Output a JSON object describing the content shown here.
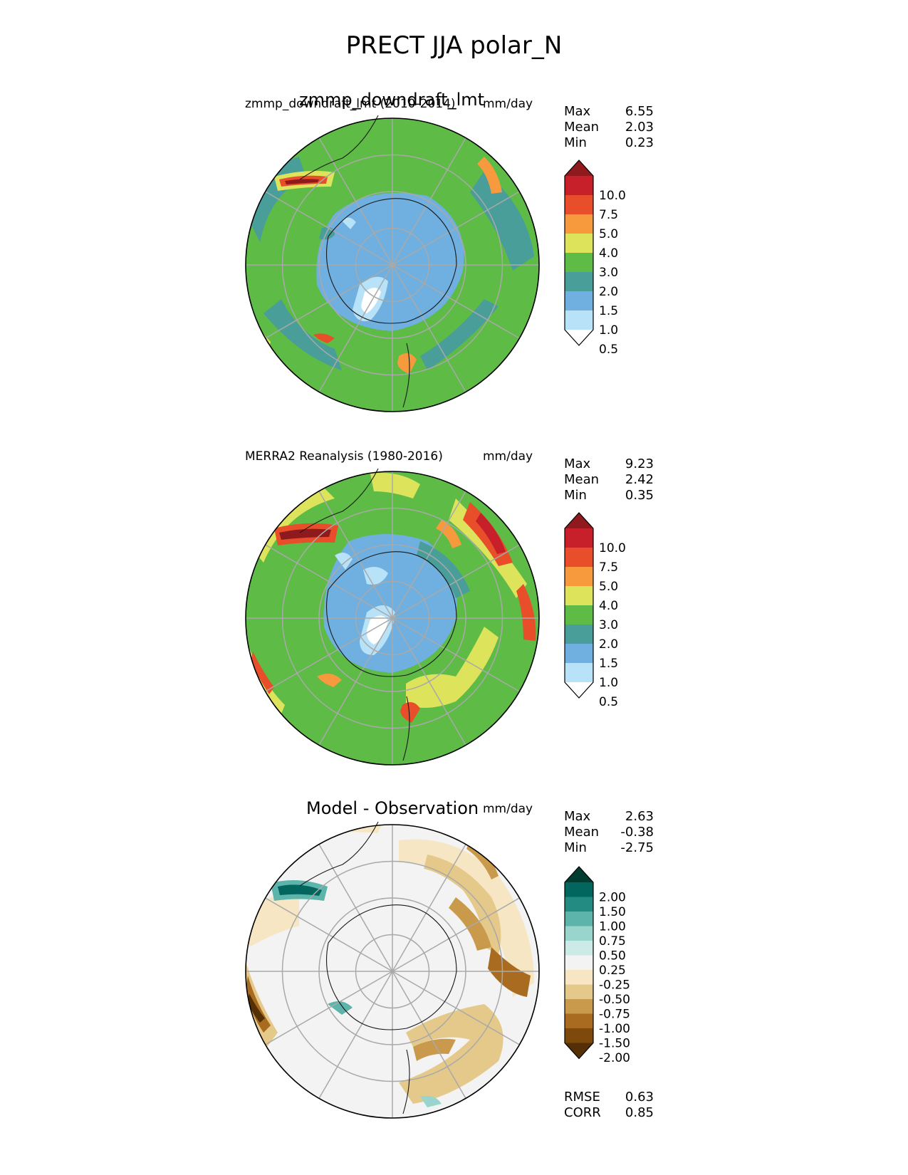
{
  "figure_title": "PRECT JJA polar_N",
  "panels": [
    {
      "title": "zmmp_downdraft_lmt",
      "subtitle_left": "zmmp_downdraft_lmt (2010-2014)",
      "units": "mm/day",
      "stats": {
        "max_label": "Max",
        "max": "6.55",
        "mean_label": "Mean",
        "mean": "2.03",
        "min_label": "Min",
        "min": "0.23"
      },
      "colorbar": {
        "labels": [
          "10.0",
          "7.5",
          "5.0",
          "4.0",
          "3.0",
          "2.0",
          "1.5",
          "1.0",
          "0.5"
        ],
        "colors": [
          "#8e1a1e",
          "#c8202a",
          "#e94e2b",
          "#f69a3d",
          "#dde35a",
          "#5dbb46",
          "#4a9e9a",
          "#6fb0e0",
          "#b8e2f8",
          "#ffffff"
        ]
      }
    },
    {
      "title": "",
      "subtitle_left": "MERRA2 Reanalysis (1980-2016)",
      "units": "mm/day",
      "stats": {
        "max_label": "Max",
        "max": "9.23",
        "mean_label": "Mean",
        "mean": "2.42",
        "min_label": "Min",
        "min": "0.35"
      },
      "colorbar": {
        "labels": [
          "10.0",
          "7.5",
          "5.0",
          "4.0",
          "3.0",
          "2.0",
          "1.5",
          "1.0",
          "0.5"
        ],
        "colors": [
          "#8e1a1e",
          "#c8202a",
          "#e94e2b",
          "#f69a3d",
          "#dde35a",
          "#5dbb46",
          "#4a9e9a",
          "#6fb0e0",
          "#b8e2f8",
          "#ffffff"
        ]
      }
    },
    {
      "title": "Model - Observation",
      "subtitle_left": "",
      "units": "mm/day",
      "stats": {
        "max_label": "Max",
        "max": "2.63",
        "mean_label": "Mean",
        "mean": "-0.38",
        "min_label": "Min",
        "min": "-2.75"
      },
      "colorbar": {
        "labels": [
          "2.00",
          "1.50",
          "1.00",
          "0.75",
          "0.50",
          "0.25",
          "-0.25",
          "-0.50",
          "-0.75",
          "-1.00",
          "-1.50",
          "-2.00"
        ],
        "colors": [
          "#013c30",
          "#02665e",
          "#238b82",
          "#5cb4aa",
          "#99d5cc",
          "#cdebe6",
          "#f3f3f3",
          "#f6e6c3",
          "#e5c98a",
          "#c99a4c",
          "#a86b1f",
          "#7d4a0c",
          "#553007"
        ]
      },
      "metrics": {
        "rmse_label": "RMSE",
        "rmse": "0.63",
        "corr_label": "CORR",
        "corr": "0.85"
      }
    }
  ],
  "chart_data": {
    "type": "heatmap",
    "title": "PRECT JJA polar_N",
    "projection": "north polar stereographic",
    "variable": "PRECT",
    "season": "JJA",
    "units": "mm/day",
    "panels": [
      {
        "name": "zmmp_downdraft_lmt (2010-2014)",
        "max": 6.55,
        "mean": 2.03,
        "min": 0.23,
        "levels": [
          0.5,
          1.0,
          1.5,
          2.0,
          3.0,
          4.0,
          5.0,
          7.5,
          10.0
        ]
      },
      {
        "name": "MERRA2 Reanalysis (1980-2016)",
        "max": 9.23,
        "mean": 2.42,
        "min": 0.35,
        "levels": [
          0.5,
          1.0,
          1.5,
          2.0,
          3.0,
          4.0,
          5.0,
          7.5,
          10.0
        ]
      },
      {
        "name": "Model - Observation",
        "max": 2.63,
        "mean": -0.38,
        "min": -2.75,
        "levels": [
          -2.0,
          -1.5,
          -1.0,
          -0.75,
          -0.5,
          -0.25,
          0.25,
          0.5,
          0.75,
          1.0,
          1.5,
          2.0
        ],
        "rmse": 0.63,
        "corr": 0.85
      }
    ]
  }
}
